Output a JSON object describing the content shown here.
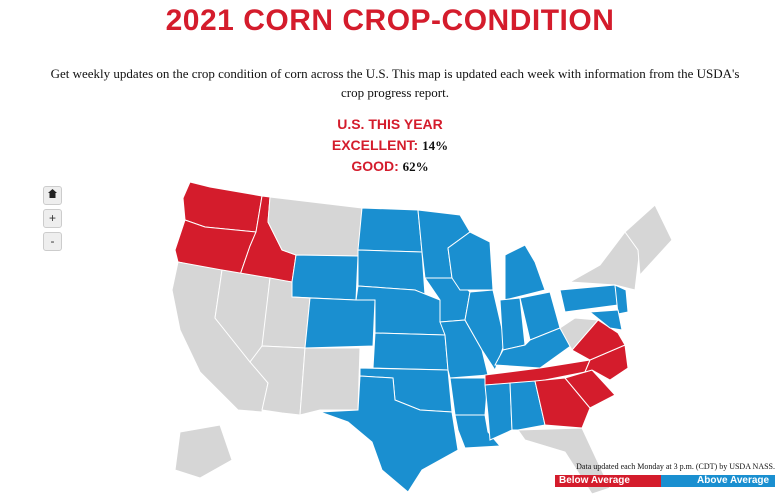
{
  "header": {
    "title": "2021 CORN CROP-CONDITION",
    "intro": "Get weekly updates on the crop condition of corn across the U.S. This map is updated each week with information from the USDA's crop progress report."
  },
  "summary": {
    "heading": "U.S. THIS YEAR",
    "rows": [
      {
        "label": "EXCELLENT:",
        "value": "14%"
      },
      {
        "label": "GOOD:",
        "value": "62%"
      }
    ]
  },
  "map": {
    "controls": [
      "+",
      "-"
    ],
    "note": "Data updated each Monday at 3 p.m. (CDT) by USDA NASS.",
    "legend": [
      {
        "label": "Below Average",
        "color": "#d41c2c"
      },
      {
        "label": "Above Average",
        "color": "#1a8fd0"
      }
    ],
    "no_data_color": "#d6d6d6"
  }
}
